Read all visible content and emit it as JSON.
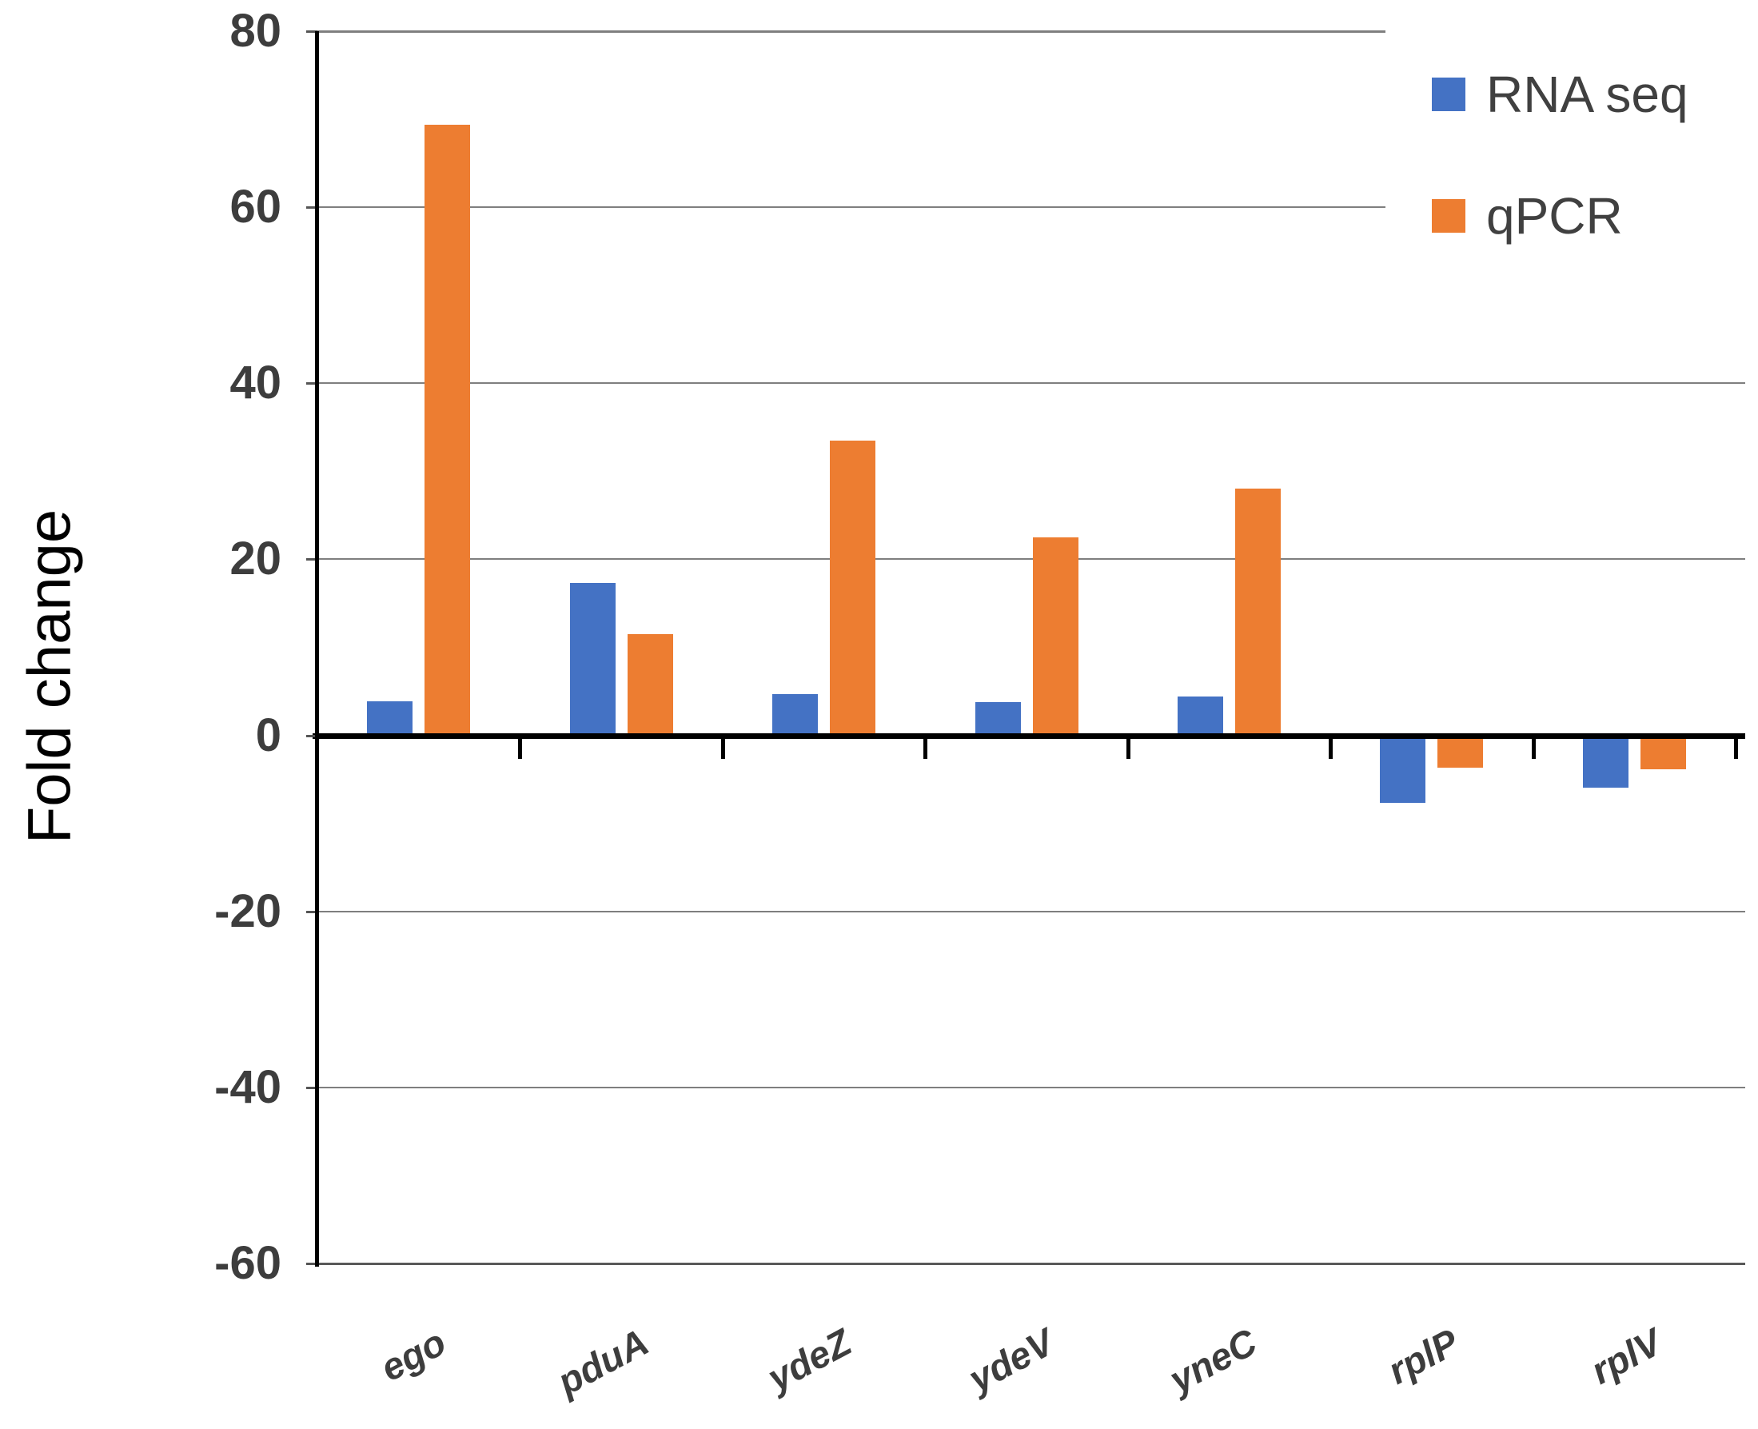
{
  "chart_data": {
    "type": "bar",
    "categories": [
      "ego",
      "pduA",
      "ydeZ",
      "ydeV",
      "yneC",
      "rplP",
      "rplV"
    ],
    "series": [
      {
        "name": "RNA seq",
        "color": "#4472C4",
        "values": [
          3.9,
          17.3,
          4.7,
          3.8,
          4.4,
          -7.7,
          -5.9
        ]
      },
      {
        "name": "qPCR",
        "color": "#ED7D31",
        "values": [
          69.4,
          11.5,
          33.5,
          22.5,
          28.0,
          -3.7,
          -3.9
        ]
      }
    ],
    "title": "",
    "xlabel": "",
    "ylabel": "Fold change",
    "ylim": [
      -60,
      80
    ],
    "yticks": [
      80,
      60,
      40,
      20,
      0,
      -20,
      -40,
      -60
    ],
    "grid": true,
    "legend_position": "top-right",
    "category_label_style": "bold italic, rotated"
  },
  "axis_colors": {
    "gridline": "#7f7f7f",
    "zero_line": "#000000",
    "tick_label": "#3d3d3d",
    "axis_title": "#000000"
  }
}
